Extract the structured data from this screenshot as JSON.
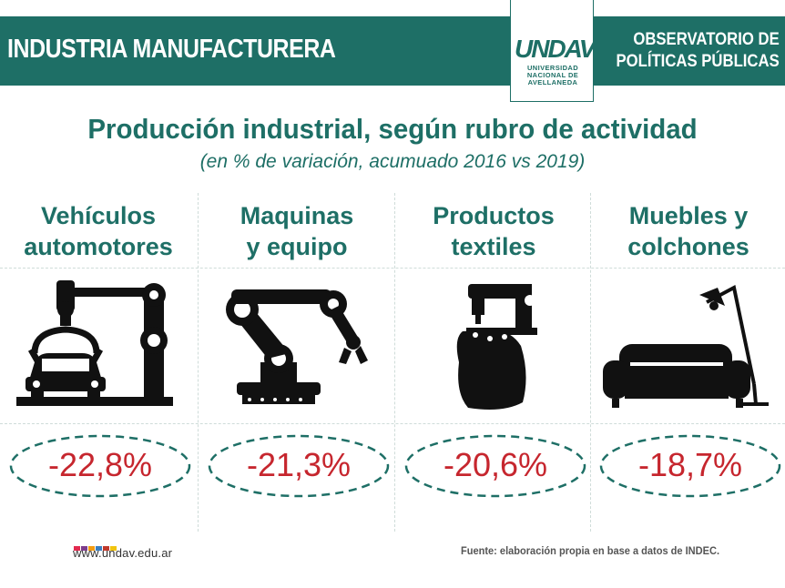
{
  "header": {
    "title": "INDUSTRIA MANUFACTURERA",
    "logo_mark": "UNDAV",
    "logo_lines": [
      "UNIVERSIDAD",
      "NACIONAL DE",
      "AVELLANEDA"
    ],
    "observatorio_lines": [
      "OBSERVATORIO DE",
      "POLÍTICAS PÚBLICAS"
    ],
    "brand_color": "#1e6f66"
  },
  "chart_data": {
    "type": "table",
    "title": "Producción industrial, según rubro de actividad",
    "subtitle": "(en % de variación, acumuado 2016 vs 2019)",
    "categories": [
      [
        "Vehículos",
        "automotores"
      ],
      [
        "Maquinas",
        "y equipo"
      ],
      [
        "Productos",
        "textiles"
      ],
      [
        "Muebles y",
        "colchones"
      ]
    ],
    "icons": [
      "car-assembly-icon",
      "robot-arm-icon",
      "sewing-machine-icon",
      "sofa-lamp-icon"
    ],
    "values": [
      -22.8,
      -21.3,
      -20.6,
      -18.7
    ],
    "value_labels": [
      "-22,8%",
      "-21,3%",
      "-20,6%",
      "-18,7%"
    ],
    "value_color": "#c6262e",
    "ellipse_color": "#1e6f66"
  },
  "footer": {
    "url": "www.undav.edu.ar",
    "source": "Fuente: elaboración propia en base a datos de INDEC.",
    "dot_colors": [
      "#e2294f",
      "#7c3c8c",
      "#f39c12",
      "#3a7fc1",
      "#c0392b",
      "#f1c40f"
    ]
  }
}
